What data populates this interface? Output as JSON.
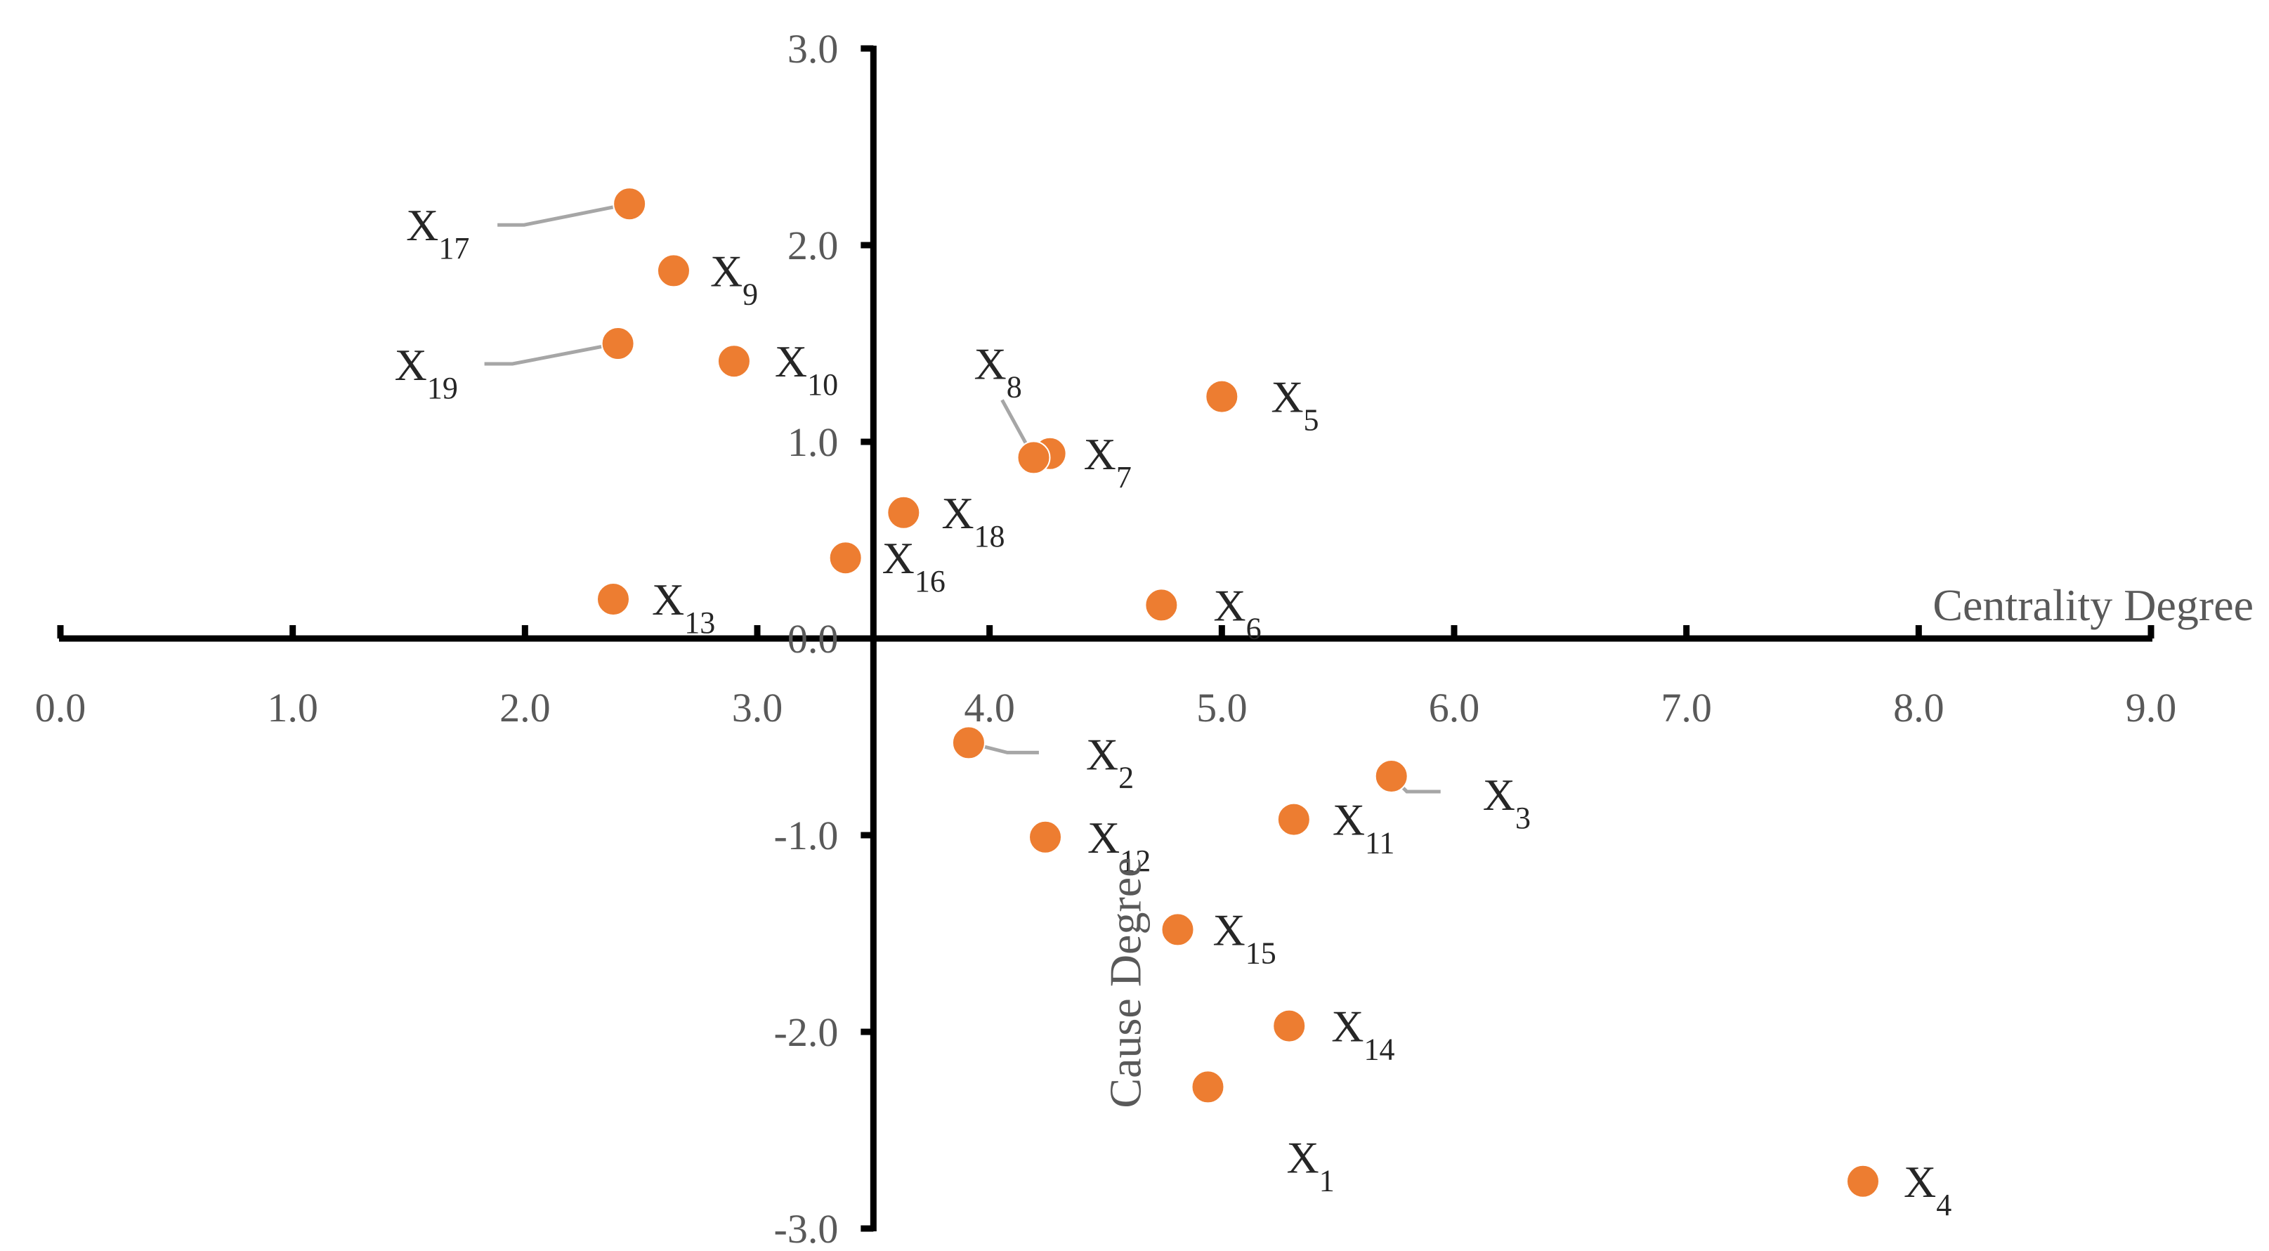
{
  "chart_data": {
    "type": "scatter",
    "xlabel": "Centrality Degree",
    "ylabel": "Cause Degree",
    "xlim": [
      0,
      9
    ],
    "ylim": [
      -3,
      3
    ],
    "x_ticks": [
      "0.0",
      "1.0",
      "2.0",
      "3.0",
      "4.0",
      "5.0",
      "6.0",
      "7.0",
      "8.0",
      "9.0"
    ],
    "y_ticks": [
      "3.0",
      "2.0",
      "1.0",
      "0.0",
      "-1.0",
      "-2.0",
      "-3.0"
    ],
    "grid": false,
    "legend": "none",
    "marker_color": "#ED7D31",
    "points": [
      {
        "label": "X",
        "sub": "1",
        "x": 4.94,
        "y": -2.28
      },
      {
        "label": "X",
        "sub": "2",
        "x": 3.91,
        "y": -0.53
      },
      {
        "label": "X",
        "sub": "3",
        "x": 5.73,
        "y": -0.7
      },
      {
        "label": "X",
        "sub": "4",
        "x": 7.76,
        "y": -2.76
      },
      {
        "label": "X",
        "sub": "5",
        "x": 5.0,
        "y": 1.23
      },
      {
        "label": "X",
        "sub": "6",
        "x": 4.74,
        "y": 0.17
      },
      {
        "label": "X",
        "sub": "7",
        "x": 4.26,
        "y": 0.94
      },
      {
        "label": "X",
        "sub": "8",
        "x": 4.19,
        "y": 0.92
      },
      {
        "label": "X",
        "sub": "9",
        "x": 2.64,
        "y": 1.87
      },
      {
        "label": "X",
        "sub": "10",
        "x": 2.9,
        "y": 1.41
      },
      {
        "label": "X",
        "sub": "11",
        "x": 5.31,
        "y": -0.92
      },
      {
        "label": "X",
        "sub": "12",
        "x": 4.24,
        "y": -1.01
      },
      {
        "label": "X",
        "sub": "13",
        "x": 2.38,
        "y": 0.2
      },
      {
        "label": "X",
        "sub": "14",
        "x": 5.29,
        "y": -1.97
      },
      {
        "label": "X",
        "sub": "15",
        "x": 4.81,
        "y": -1.48
      },
      {
        "label": "X",
        "sub": "16",
        "x": 3.38,
        "y": 0.41
      },
      {
        "label": "X",
        "sub": "17",
        "x": 2.45,
        "y": 2.21
      },
      {
        "label": "X",
        "sub": "18",
        "x": 3.63,
        "y": 0.64
      },
      {
        "label": "X",
        "sub": "19",
        "x": 2.4,
        "y": 1.5
      }
    ]
  }
}
